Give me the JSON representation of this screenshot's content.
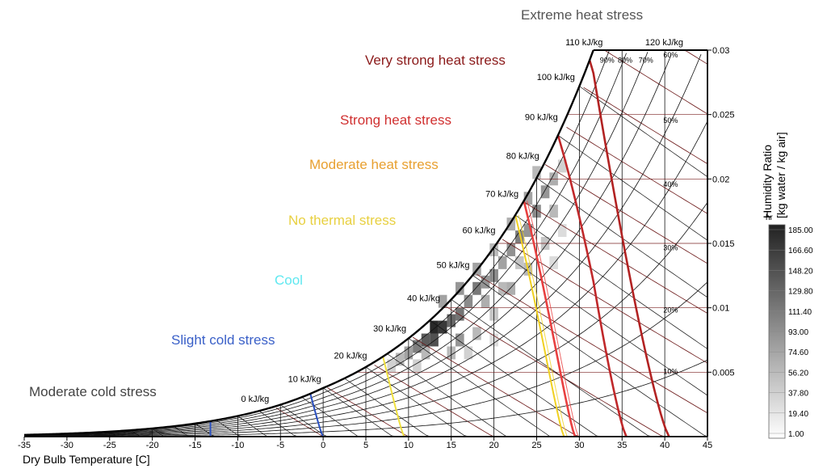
{
  "chart_data": {
    "type": "heatmap",
    "title": "",
    "xlabel": "Dry Bulb Temperature [C]",
    "ylabel_line1": "Humidity Ratio",
    "ylabel_line2": "[kg water / kg air]",
    "xlim": [
      -35,
      45
    ],
    "ylim": [
      0,
      0.03
    ],
    "x_ticks": [
      -35,
      -30,
      -25,
      -20,
      -15,
      -10,
      -5,
      0,
      5,
      10,
      15,
      20,
      25,
      30,
      35,
      40,
      45
    ],
    "y_ticks": [
      {
        "value": 0.005,
        "label": "0.005"
      },
      {
        "value": 0.01,
        "label": "0.01"
      },
      {
        "value": 0.015,
        "label": "0.015"
      },
      {
        "value": 0.02,
        "label": "0.02"
      },
      {
        "value": 0.025,
        "label": "0.025"
      },
      {
        "value": 0.03,
        "label": "0.03"
      }
    ],
    "enthalpy_lines": [
      {
        "h": 0,
        "label": "0 kJ/kg"
      },
      {
        "h": 10,
        "label": "10 kJ/kg"
      },
      {
        "h": 20,
        "label": "20 kJ/kg"
      },
      {
        "h": 30,
        "label": "30 kJ/kg"
      },
      {
        "h": 40,
        "label": "40 kJ/kg"
      },
      {
        "h": 50,
        "label": "50 kJ/kg"
      },
      {
        "h": 60,
        "label": "60 kJ/kg"
      },
      {
        "h": 70,
        "label": "70 kJ/kg"
      },
      {
        "h": 80,
        "label": "80 kJ/kg"
      },
      {
        "h": 90,
        "label": "90 kJ/kg"
      },
      {
        "h": 100,
        "label": "100 kJ/kg"
      },
      {
        "h": 110,
        "label": "110 kJ/kg"
      },
      {
        "h": 120,
        "label": "120 kJ/kg"
      }
    ],
    "rh_curves": [
      {
        "rh": 10,
        "label": "10%"
      },
      {
        "rh": 20,
        "label": "20%"
      },
      {
        "rh": 30,
        "label": "30%"
      },
      {
        "rh": 40,
        "label": "40%"
      },
      {
        "rh": 50,
        "label": "50%"
      },
      {
        "rh": 60,
        "label": "60%"
      },
      {
        "rh": 70,
        "label": "70%"
      },
      {
        "rh": 80,
        "label": "80%"
      },
      {
        "rh": 90,
        "label": "90%"
      }
    ],
    "stress_zones": [
      {
        "label": "Extreme heat stress",
        "color": "#555555",
        "boundary": null
      },
      {
        "label": "Very strong  heat stress",
        "color": "#8b1a1a",
        "boundary": {
          "temp_at_dry": 40.5,
          "temp_at_saturation": 31.2,
          "line_color": "#b22222"
        }
      },
      {
        "label": "Strong heat stress",
        "color": "#d03030",
        "boundary": {
          "temp_at_dry": 35.5,
          "temp_at_saturation": 27.5,
          "line_color": "#c0282a"
        }
      },
      {
        "label": "Moderate heat stress",
        "color": "#e8a030",
        "boundary": {
          "temp_at_dry": 29.5,
          "temp_at_saturation": 23.5,
          "line_color": "#e84040"
        }
      },
      {
        "label": "No thermal stress",
        "color": "#e8d040",
        "boundary": {
          "temp_at_dry": 28.2,
          "temp_at_saturation": 22.5,
          "line_color": "#f0d020"
        }
      },
      {
        "label": "Cool",
        "color": "#60e8f0",
        "boundary": {
          "temp_at_dry": 9.5,
          "temp_at_saturation": 7.0,
          "line_color": "#f0e040"
        }
      },
      {
        "label": "Slight cold stress",
        "color": "#3a60c8",
        "boundary": {
          "temp_at_dry": 0,
          "temp_at_saturation": -1.5,
          "line_color": "#2a50c0"
        }
      },
      {
        "label": "Moderate cold stress",
        "color": "#444444",
        "boundary": {
          "temp_at_dry": -13.2,
          "temp_at_saturation": -13.2,
          "line_color": "#2a50c0"
        }
      }
    ],
    "legend": {
      "title": "hr",
      "values": [
        "185.00",
        "166.60",
        "148.20",
        "129.80",
        "111.40",
        "93.00",
        "74.60",
        "56.20",
        "37.80",
        "19.40",
        "1.00"
      ],
      "color_max": "#222222",
      "color_min": "#ffffff"
    },
    "heatmap_cells": [
      {
        "t": 8,
        "w": 0.0055,
        "v": 40
      },
      {
        "t": 9,
        "w": 0.006,
        "v": 60
      },
      {
        "t": 10,
        "w": 0.0065,
        "v": 80
      },
      {
        "t": 11,
        "w": 0.007,
        "v": 110
      },
      {
        "t": 12,
        "w": 0.0075,
        "v": 140
      },
      {
        "t": 13,
        "w": 0.0085,
        "v": 185
      },
      {
        "t": 14,
        "w": 0.0085,
        "v": 170
      },
      {
        "t": 13,
        "w": 0.0075,
        "v": 150
      },
      {
        "t": 15,
        "w": 0.009,
        "v": 130
      },
      {
        "t": 16,
        "w": 0.0095,
        "v": 120
      },
      {
        "t": 17,
        "w": 0.0105,
        "v": 100
      },
      {
        "t": 18,
        "w": 0.0115,
        "v": 115
      },
      {
        "t": 19,
        "w": 0.012,
        "v": 90
      },
      {
        "t": 20,
        "w": 0.0125,
        "v": 100
      },
      {
        "t": 21,
        "w": 0.0135,
        "v": 80
      },
      {
        "t": 22,
        "w": 0.0145,
        "v": 95
      },
      {
        "t": 23,
        "w": 0.0155,
        "v": 110
      },
      {
        "t": 24,
        "w": 0.016,
        "v": 90
      },
      {
        "t": 25,
        "w": 0.0175,
        "v": 100
      },
      {
        "t": 26,
        "w": 0.019,
        "v": 90
      },
      {
        "t": 27,
        "w": 0.02,
        "v": 70
      },
      {
        "t": 28,
        "w": 0.021,
        "v": 40
      },
      {
        "t": 15,
        "w": 0.0065,
        "v": 60
      },
      {
        "t": 18,
        "w": 0.008,
        "v": 60
      },
      {
        "t": 20,
        "w": 0.0095,
        "v": 50
      },
      {
        "t": 22,
        "w": 0.0115,
        "v": 70
      },
      {
        "t": 24,
        "w": 0.013,
        "v": 60
      },
      {
        "t": 26,
        "w": 0.015,
        "v": 50
      },
      {
        "t": 14,
        "w": 0.0105,
        "v": 80
      },
      {
        "t": 16,
        "w": 0.0115,
        "v": 90
      },
      {
        "t": 18,
        "w": 0.013,
        "v": 80
      },
      {
        "t": 20,
        "w": 0.0145,
        "v": 60
      },
      {
        "t": 22,
        "w": 0.0165,
        "v": 70
      },
      {
        "t": 24,
        "w": 0.0185,
        "v": 80
      },
      {
        "t": 25,
        "w": 0.0205,
        "v": 60
      },
      {
        "t": 27,
        "w": 0.0175,
        "v": 60
      },
      {
        "t": 11,
        "w": 0.0055,
        "v": 40
      },
      {
        "t": 12,
        "w": 0.0065,
        "v": 60
      },
      {
        "t": 16,
        "w": 0.0075,
        "v": 90
      },
      {
        "t": 19,
        "w": 0.0105,
        "v": 70
      },
      {
        "t": 21,
        "w": 0.0115,
        "v": 60
      },
      {
        "t": 23,
        "w": 0.0135,
        "v": 50
      },
      {
        "t": 27,
        "w": 0.0135,
        "v": 30
      },
      {
        "t": 28,
        "w": 0.016,
        "v": 30
      },
      {
        "t": 17,
        "w": 0.0065,
        "v": 40
      },
      {
        "t": 20,
        "w": 0.0075,
        "v": 30
      }
    ]
  }
}
